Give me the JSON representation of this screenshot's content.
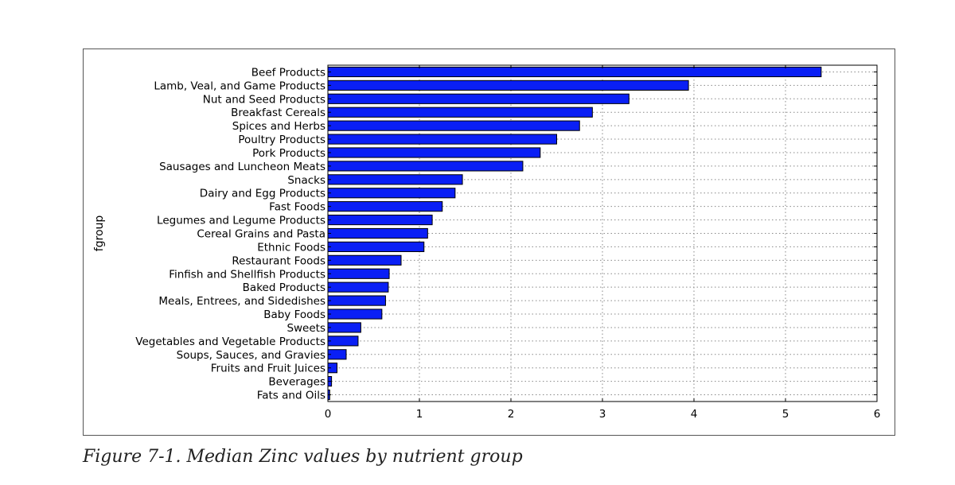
{
  "chart_data": {
    "type": "bar",
    "orientation": "horizontal",
    "ylabel": "fgroup",
    "xlabel": "",
    "xlim": [
      0,
      6
    ],
    "xticks": [
      0,
      1,
      2,
      3,
      4,
      5,
      6
    ],
    "grid": true,
    "bar_color": "#0a1ff5",
    "categories": [
      "Beef Products",
      "Lamb, Veal, and Game Products",
      "Nut and Seed Products",
      "Breakfast Cereals",
      "Spices and Herbs",
      "Poultry Products",
      "Pork Products",
      "Sausages and Luncheon Meats",
      "Snacks",
      "Dairy and Egg Products",
      "Fast Foods",
      "Legumes and Legume Products",
      "Cereal Grains and Pasta",
      "Ethnic Foods",
      "Restaurant Foods",
      "Finfish and Shellfish Products",
      "Baked Products",
      "Meals, Entrees, and Sidedishes",
      "Baby Foods",
      "Sweets",
      "Vegetables and Vegetable Products",
      "Soups, Sauces, and Gravies",
      "Fruits and Fruit Juices",
      "Beverages",
      "Fats and Oils"
    ],
    "values": [
      5.39,
      3.94,
      3.29,
      2.89,
      2.75,
      2.5,
      2.32,
      2.13,
      1.47,
      1.39,
      1.25,
      1.14,
      1.09,
      1.05,
      0.8,
      0.67,
      0.66,
      0.63,
      0.59,
      0.36,
      0.33,
      0.2,
      0.1,
      0.04,
      0.02
    ]
  },
  "caption": "Figure 7-1. Median Zinc values by nutrient group"
}
